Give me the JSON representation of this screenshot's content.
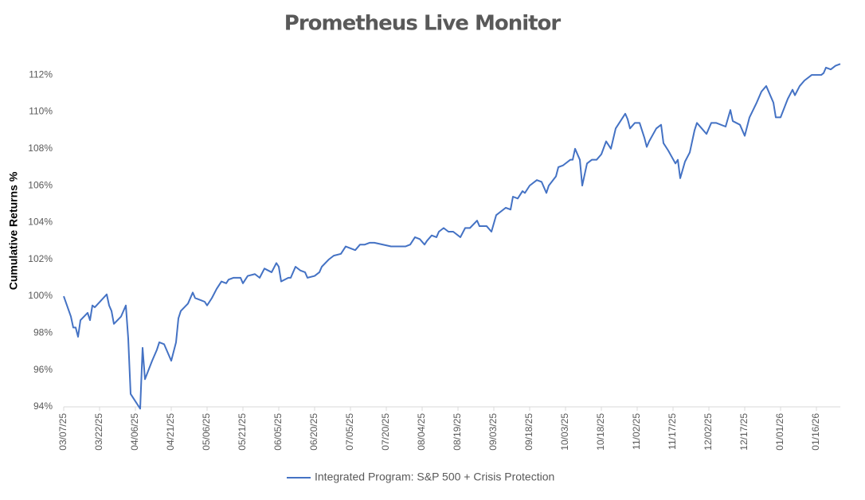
{
  "chart_data": {
    "type": "line",
    "title": "Prometheus Live Monitor",
    "y_label": "Cumulative Returns %",
    "x": [
      "03/07/25",
      "03/10/25",
      "03/11/25",
      "03/12/25",
      "03/13/25",
      "03/14/25",
      "03/17/25",
      "03/18/25",
      "03/19/25",
      "03/20/25",
      "03/25/25",
      "03/26/25",
      "03/27/25",
      "03/28/25",
      "03/31/25",
      "04/02/25",
      "04/03/25",
      "04/04/25",
      "04/06/25",
      "04/08/25",
      "04/09/25",
      "04/10/25",
      "04/13/25",
      "04/15/25",
      "04/16/25",
      "04/18/25",
      "04/21/25",
      "04/23/25",
      "04/24/25",
      "04/25/25",
      "04/28/25",
      "04/30/25",
      "05/01/25",
      "05/05/25",
      "05/06/25",
      "05/08/25",
      "05/10/25",
      "05/12/25",
      "05/14/25",
      "05/15/25",
      "05/17/25",
      "05/20/25",
      "05/21/25",
      "05/23/25",
      "05/26/25",
      "05/28/25",
      "05/30/25",
      "06/02/25",
      "06/04/25",
      "06/05/25",
      "06/06/25",
      "06/09/25",
      "06/10/25",
      "06/12/25",
      "06/14/25",
      "06/16/25",
      "06/17/25",
      "06/20/25",
      "06/22/25",
      "06/23/25",
      "06/26/25",
      "06/28/25",
      "07/01/25",
      "07/03/25",
      "07/07/25",
      "07/09/25",
      "07/11/25",
      "07/13/25",
      "07/15/25",
      "07/22/25",
      "07/28/25",
      "07/30/25",
      "08/01/25",
      "08/03/25",
      "08/05/25",
      "08/06/25",
      "08/08/25",
      "08/10/25",
      "08/11/25",
      "08/13/25",
      "08/15/25",
      "08/17/25",
      "08/20/25",
      "08/22/25",
      "08/24/25",
      "08/27/25",
      "08/28/25",
      "08/31/25",
      "09/02/25",
      "09/04/25",
      "09/08/25",
      "09/10/25",
      "09/11/25",
      "09/13/25",
      "09/15/25",
      "09/16/25",
      "09/18/25",
      "09/21/25",
      "09/23/25",
      "09/25/25",
      "09/26/25",
      "09/29/25",
      "09/30/25",
      "10/02/25",
      "10/05/25",
      "10/06/25",
      "10/07/25",
      "10/09/25",
      "10/10/25",
      "10/12/25",
      "10/14/25",
      "10/16/25",
      "10/18/25",
      "10/20/25",
      "10/22/25",
      "10/24/25",
      "10/28/25",
      "10/29/25",
      "10/30/25",
      "11/01/25",
      "11/03/25",
      "11/05/25",
      "11/06/25",
      "11/07/25",
      "11/10/25",
      "11/12/25",
      "11/13/25",
      "11/15/25",
      "11/18/25",
      "11/19/25",
      "11/20/25",
      "11/22/25",
      "11/24/25",
      "11/26/25",
      "11/27/25",
      "11/29/25",
      "12/01/25",
      "12/03/25",
      "12/05/25",
      "12/09/25",
      "12/11/25",
      "12/12/25",
      "12/15/25",
      "12/17/25",
      "12/19/25",
      "12/22/25",
      "12/24/25",
      "12/26/25",
      "12/29/25",
      "12/30/25",
      "01/01/26",
      "01/04/26",
      "01/06/26",
      "01/07/26",
      "01/09/26",
      "01/11/26",
      "01/14/26",
      "01/18/26",
      "01/19/26",
      "01/20/26",
      "01/22/26",
      "01/24/26",
      "01/26/26"
    ],
    "series": [
      {
        "name": "Integrated Program: S&P 500 + Crisis Protection",
        "color": "#4472c4",
        "values": [
          100.0,
          98.9,
          98.3,
          98.3,
          97.8,
          98.7,
          99.1,
          98.7,
          99.5,
          99.4,
          100.1,
          99.5,
          99.2,
          98.5,
          98.9,
          99.5,
          97.7,
          94.7,
          94.3,
          93.9,
          97.2,
          95.5,
          96.5,
          97.1,
          97.5,
          97.4,
          96.5,
          97.5,
          98.8,
          99.2,
          99.6,
          100.2,
          99.9,
          99.7,
          99.5,
          99.9,
          100.4,
          100.8,
          100.7,
          100.9,
          101.0,
          101.0,
          100.7,
          101.1,
          101.2,
          101.0,
          101.5,
          101.3,
          101.8,
          101.6,
          100.8,
          101.0,
          101.0,
          101.6,
          101.4,
          101.3,
          101.0,
          101.1,
          101.3,
          101.6,
          102.0,
          102.2,
          102.3,
          102.7,
          102.5,
          102.8,
          102.8,
          102.9,
          102.9,
          102.7,
          102.7,
          102.8,
          103.2,
          103.1,
          102.8,
          103.0,
          103.3,
          103.2,
          103.5,
          103.7,
          103.5,
          103.5,
          103.2,
          103.7,
          103.7,
          104.1,
          103.8,
          103.8,
          103.5,
          104.4,
          104.8,
          104.7,
          105.4,
          105.3,
          105.7,
          105.6,
          106.0,
          106.3,
          106.2,
          105.6,
          106.0,
          106.5,
          107.0,
          107.1,
          107.4,
          107.4,
          108.0,
          107.4,
          106.0,
          107.2,
          107.4,
          107.4,
          107.7,
          108.4,
          108.0,
          109.1,
          109.9,
          109.6,
          109.1,
          109.4,
          109.4,
          108.6,
          108.1,
          108.4,
          109.1,
          109.3,
          108.3,
          107.9,
          107.2,
          107.4,
          106.4,
          107.3,
          107.8,
          109.0,
          109.4,
          109.1,
          108.8,
          109.4,
          109.4,
          109.2,
          110.1,
          109.5,
          109.3,
          108.7,
          109.7,
          110.5,
          111.1,
          111.4,
          110.5,
          109.7,
          109.7,
          110.7,
          111.2,
          110.9,
          111.4,
          111.7,
          112.0,
          112.0,
          112.1,
          112.4,
          112.3,
          112.5,
          112.6
        ]
      }
    ],
    "xlim": [
      "03/07/25",
      "01/26/26"
    ],
    "xticks": [
      "03/07/25",
      "03/22/25",
      "04/06/25",
      "04/21/25",
      "05/06/25",
      "05/21/25",
      "06/05/25",
      "06/20/25",
      "07/05/25",
      "07/20/25",
      "08/04/25",
      "08/19/25",
      "09/03/25",
      "09/18/25",
      "10/03/25",
      "10/18/25",
      "11/02/25",
      "11/17/25",
      "12/02/25",
      "12/17/25",
      "01/01/26",
      "01/16/26"
    ],
    "ylim": [
      94,
      113
    ],
    "yticks": [
      {
        "value": 94,
        "label": "94%"
      },
      {
        "value": 96,
        "label": "96%"
      },
      {
        "value": 98,
        "label": "98%"
      },
      {
        "value": 100,
        "label": "100%"
      },
      {
        "value": 102,
        "label": "102%"
      },
      {
        "value": 104,
        "label": "104%"
      },
      {
        "value": 106,
        "label": "106%"
      },
      {
        "value": 108,
        "label": "108%"
      },
      {
        "value": 110,
        "label": "110%"
      },
      {
        "value": 112,
        "label": "112%"
      }
    ],
    "grid": false,
    "legend": "bottom"
  }
}
